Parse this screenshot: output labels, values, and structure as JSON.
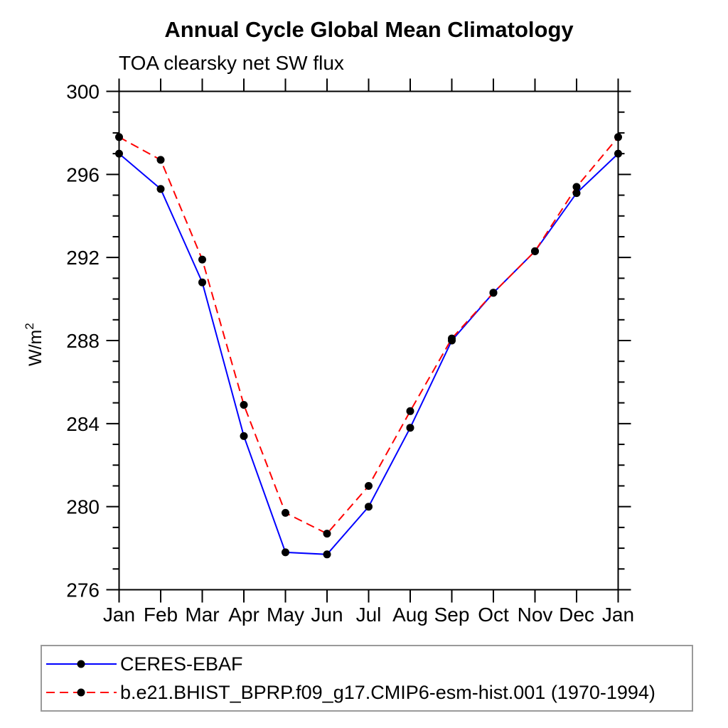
{
  "chart_data": {
    "type": "line",
    "title": "Annual Cycle Global Mean Climatology",
    "subtitle": "TOA clearsky net SW flux",
    "ylabel": {
      "base": "W/m",
      "exponent": "2"
    },
    "xlabel": "",
    "categories": [
      "Jan",
      "Feb",
      "Mar",
      "Apr",
      "May",
      "Jun",
      "Jul",
      "Aug",
      "Sep",
      "Oct",
      "Nov",
      "Dec",
      "Jan"
    ],
    "ylim": [
      276,
      300
    ],
    "yticks": [
      276,
      280,
      284,
      288,
      292,
      296,
      300
    ],
    "minor_tick_interval": 1,
    "grid": false,
    "axis_color": "#000000",
    "legend_position": "bottom",
    "legend_border_color": "#9a9a9a",
    "marker": {
      "shape": "circle",
      "color": "#000000"
    },
    "series": [
      {
        "name": "CERES-EBAF",
        "color": "#0000ff",
        "line_style": "solid",
        "values": [
          297.0,
          295.3,
          290.8,
          283.4,
          277.8,
          277.7,
          280.0,
          283.8,
          288.0,
          290.3,
          292.3,
          295.1,
          297.0
        ]
      },
      {
        "name": "b.e21.BHIST_BPRP.f09_g17.CMIP6-esm-hist.001 (1970-1994)",
        "color": "#ff0000",
        "line_style": "dashed",
        "values": [
          297.8,
          296.7,
          291.9,
          284.9,
          279.7,
          278.7,
          281.0,
          284.6,
          288.1,
          290.3,
          292.3,
          295.4,
          297.8
        ]
      }
    ]
  }
}
